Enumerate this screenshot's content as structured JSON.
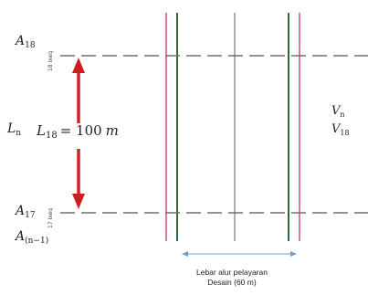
{
  "diagram": {
    "sections": {
      "top_label_base": "A",
      "top_label_sub": "18",
      "top_tick": "18 ixeq",
      "bottom_label_base": "A",
      "bottom_label_sub": "17",
      "bottom_tick": "17 ixeq",
      "prev_label_base": "A",
      "prev_label_sub": "(n−1)"
    },
    "distance": {
      "general_base": "L",
      "general_sub": "n",
      "specific_base": "L",
      "specific_sub": "18",
      "equals": "= 100",
      "unit": "m"
    },
    "volume": {
      "general_base": "V",
      "general_sub": "n",
      "specific_base": "V",
      "specific_sub": "18"
    },
    "channel_width": {
      "line1": "Lebar alur pelayaran",
      "line2": "Desain (60 m)"
    },
    "colors": {
      "red_line": "#cc4466",
      "green_line": "#2e6b3a",
      "gray_line": "#8a8a8a",
      "dashed": "#707070",
      "arrow": "#cc1f1f",
      "width_arrow": "#6f9fd0"
    }
  }
}
